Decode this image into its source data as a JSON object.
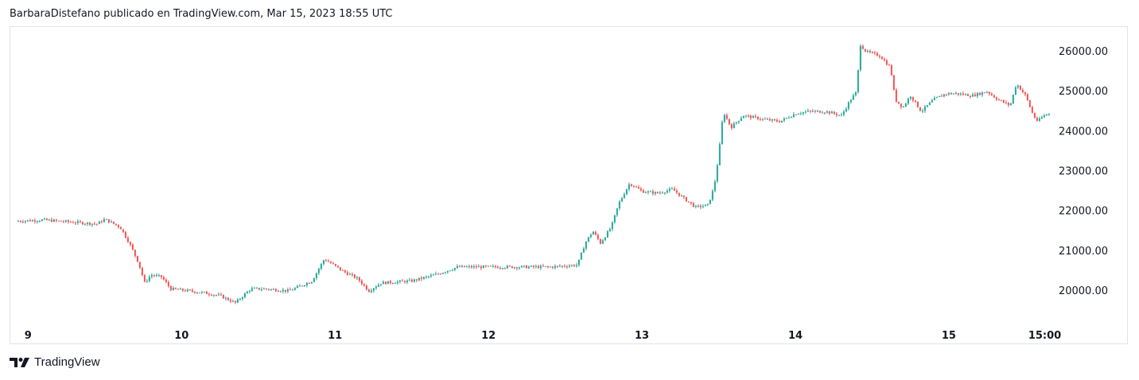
{
  "header": {
    "attribution": "BarbaraDistefano publicado en TradingView.com, Mar 15, 2023 18:55 UTC"
  },
  "footer": {
    "brand": "TradingView",
    "logo_icon": "tradingview-logo-icon"
  },
  "colors": {
    "up": "#26a69a",
    "down": "#ef5350",
    "axis_text": "#131722",
    "border": "#e0e3eb"
  },
  "chart_data": {
    "type": "candlestick",
    "title": "",
    "xlabel": "",
    "ylabel": "",
    "y_ticks": [
      {
        "value": 20000,
        "label": "20000.00"
      },
      {
        "value": 21000,
        "label": "21000.00"
      },
      {
        "value": 22000,
        "label": "22000.00"
      },
      {
        "value": 23000,
        "label": "23000.00"
      },
      {
        "value": 24000,
        "label": "24000.00"
      },
      {
        "value": 25000,
        "label": "25000.00"
      },
      {
        "value": 26000,
        "label": "26000.00"
      }
    ],
    "ylim": [
      19300,
      26600
    ],
    "x_ticks": [
      {
        "day": 9,
        "label": "9"
      },
      {
        "day": 10,
        "label": "10"
      },
      {
        "day": 11,
        "label": "11"
      },
      {
        "day": 12,
        "label": "12"
      },
      {
        "day": 13,
        "label": "13"
      },
      {
        "day": 14,
        "label": "14"
      },
      {
        "day": 15,
        "label": "15"
      },
      {
        "day": 15.625,
        "label": "15:00"
      }
    ],
    "xlim": [
      8.9,
      15.7
    ],
    "grid": false,
    "price_path": [
      [
        8.92,
        21750
      ],
      [
        9.1,
        21780
      ],
      [
        9.3,
        21720
      ],
      [
        9.45,
        21680
      ],
      [
        9.5,
        21800
      ],
      [
        9.6,
        21600
      ],
      [
        9.66,
        21200
      ],
      [
        9.72,
        20700
      ],
      [
        9.76,
        20200
      ],
      [
        9.8,
        20400
      ],
      [
        9.87,
        20350
      ],
      [
        9.93,
        20050
      ],
      [
        10.05,
        20000
      ],
      [
        10.15,
        19950
      ],
      [
        10.25,
        19880
      ],
      [
        10.35,
        19700
      ],
      [
        10.45,
        20050
      ],
      [
        10.55,
        20050
      ],
      [
        10.7,
        20000
      ],
      [
        10.85,
        20250
      ],
      [
        10.93,
        20800
      ],
      [
        11.05,
        20500
      ],
      [
        11.15,
        20300
      ],
      [
        11.22,
        20000
      ],
      [
        11.3,
        20200
      ],
      [
        11.5,
        20250
      ],
      [
        11.65,
        20400
      ],
      [
        11.8,
        20600
      ],
      [
        12.0,
        20600
      ],
      [
        12.2,
        20600
      ],
      [
        12.4,
        20600
      ],
      [
        12.58,
        20650
      ],
      [
        12.63,
        21200
      ],
      [
        12.68,
        21500
      ],
      [
        12.73,
        21200
      ],
      [
        12.8,
        21600
      ],
      [
        12.85,
        22200
      ],
      [
        12.92,
        22700
      ],
      [
        13.0,
        22500
      ],
      [
        13.1,
        22450
      ],
      [
        13.2,
        22550
      ],
      [
        13.28,
        22300
      ],
      [
        13.35,
        22100
      ],
      [
        13.43,
        22150
      ],
      [
        13.47,
        22600
      ],
      [
        13.5,
        23400
      ],
      [
        13.53,
        24500
      ],
      [
        13.58,
        24100
      ],
      [
        13.66,
        24400
      ],
      [
        13.8,
        24300
      ],
      [
        13.9,
        24250
      ],
      [
        14.0,
        24450
      ],
      [
        14.08,
        24500
      ],
      [
        14.2,
        24500
      ],
      [
        14.3,
        24400
      ],
      [
        14.36,
        24800
      ],
      [
        14.4,
        25000
      ],
      [
        14.42,
        26200
      ],
      [
        14.46,
        26000
      ],
      [
        14.55,
        25900
      ],
      [
        14.62,
        25600
      ],
      [
        14.65,
        24800
      ],
      [
        14.7,
        24600
      ],
      [
        14.75,
        24900
      ],
      [
        14.82,
        24500
      ],
      [
        14.9,
        24800
      ],
      [
        14.98,
        24950
      ],
      [
        15.05,
        24950
      ],
      [
        15.15,
        24900
      ],
      [
        15.25,
        25000
      ],
      [
        15.32,
        24800
      ],
      [
        15.4,
        24650
      ],
      [
        15.44,
        25200
      ],
      [
        15.5,
        24900
      ],
      [
        15.55,
        24400
      ],
      [
        15.58,
        24250
      ],
      [
        15.62,
        24400
      ],
      [
        15.66,
        24450
      ]
    ]
  }
}
